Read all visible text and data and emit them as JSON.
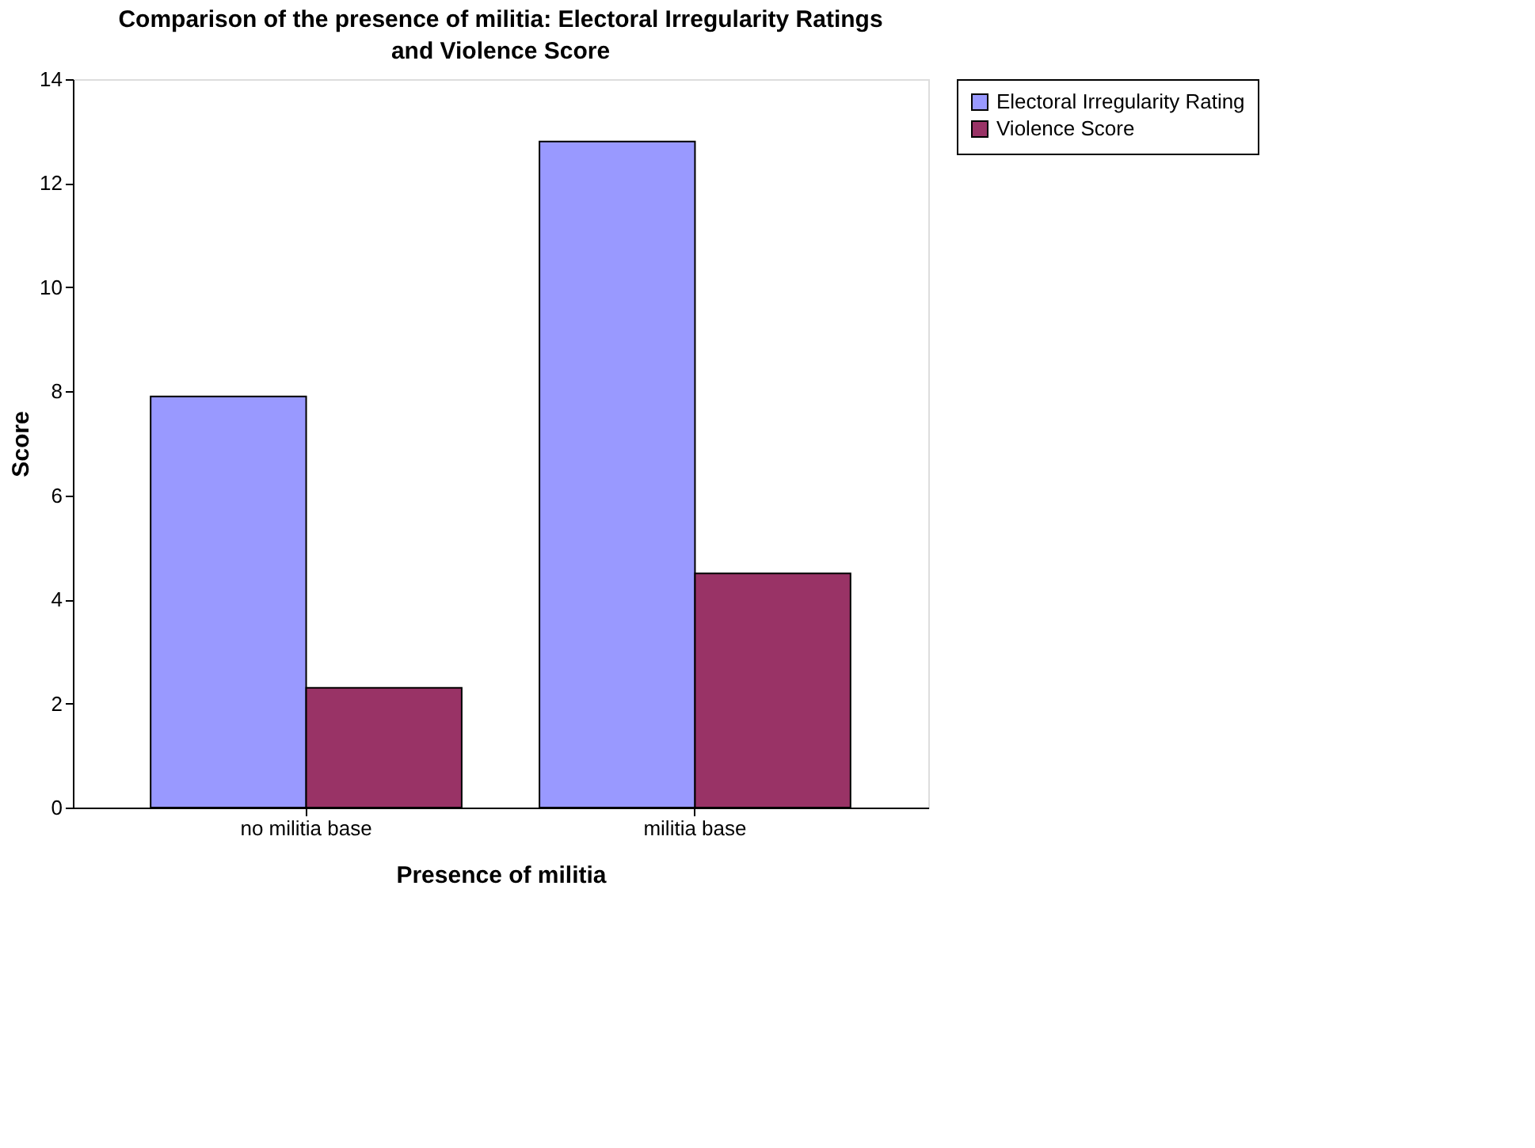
{
  "chart_data": {
    "type": "bar",
    "title": "Comparison of the presence of militia: Electoral Irregularity Ratings and Violence Score",
    "xlabel": "Presence of militia",
    "ylabel": "Score",
    "categories": [
      "no militia base",
      "militia base"
    ],
    "series": [
      {
        "name": "Electoral Irregularity Rating",
        "color": "#9999ff",
        "values": [
          7.9,
          12.8
        ]
      },
      {
        "name": "Violence Score",
        "color": "#993366",
        "values": [
          2.3,
          4.5
        ]
      }
    ],
    "ylim": [
      0,
      14
    ],
    "yticks": [
      0,
      2,
      4,
      6,
      8,
      10,
      12,
      14
    ],
    "grid": false,
    "legend": "right"
  }
}
